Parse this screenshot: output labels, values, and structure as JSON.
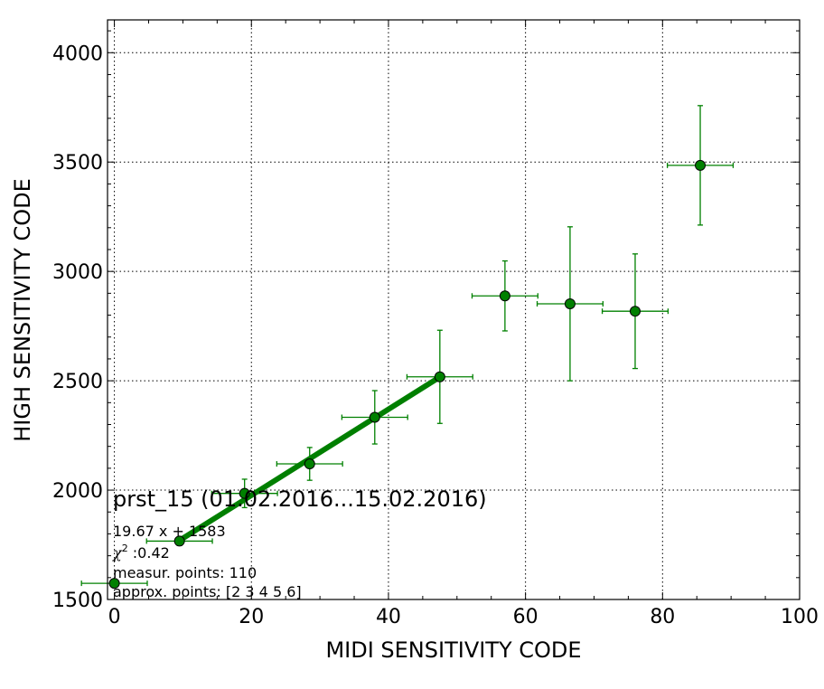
{
  "chart_data": {
    "type": "scatter",
    "xlabel": "MIDI SENSITIVITY CODE",
    "ylabel": "HIGH SENSITIVITY CODE",
    "xlim": [
      -1,
      100
    ],
    "ylim": [
      1500,
      4150
    ],
    "xticks": [
      0,
      20,
      40,
      60,
      80,
      100
    ],
    "yticks": [
      1500,
      2000,
      2500,
      3000,
      3500,
      4000
    ],
    "grid": true,
    "points": [
      {
        "x": 0,
        "y": 1574,
        "xerr": 4.8,
        "yerr": 0
      },
      {
        "x": 9.5,
        "y": 1767,
        "xerr": 4.8,
        "yerr": 20
      },
      {
        "x": 19,
        "y": 1985,
        "xerr": 4.8,
        "yerr": 65
      },
      {
        "x": 28.5,
        "y": 2120,
        "xerr": 4.8,
        "yerr": 75
      },
      {
        "x": 38,
        "y": 2333,
        "xerr": 4.8,
        "yerr": 122
      },
      {
        "x": 47.5,
        "y": 2518,
        "xerr": 4.8,
        "yerr": 213
      },
      {
        "x": 57,
        "y": 2888,
        "xerr": 4.8,
        "yerr": 160
      },
      {
        "x": 66.5,
        "y": 2852,
        "xerr": 4.8,
        "yerr": 352
      },
      {
        "x": 76,
        "y": 2818,
        "xerr": 4.8,
        "yerr": 262
      },
      {
        "x": 85.5,
        "y": 3485,
        "xerr": 4.8,
        "yerr": 273
      }
    ],
    "fit": {
      "slope": 19.67,
      "intercept": 1583,
      "x_range": [
        9.5,
        47.5
      ]
    },
    "annotations": {
      "title": "prst_15 (01.02.2016...15.02.2016)",
      "equation": "19.67 x + 1583",
      "chi2_symbol": "χ",
      "chi2_sup": "2",
      "chi2_value": " :0.42",
      "measur_points": "measur. points: 110",
      "approx_points": "approx. points: [2 3 4 5 6]"
    },
    "colors": {
      "marker": "#008000",
      "fit_line": "#007f00",
      "grid": "#000000"
    }
  }
}
